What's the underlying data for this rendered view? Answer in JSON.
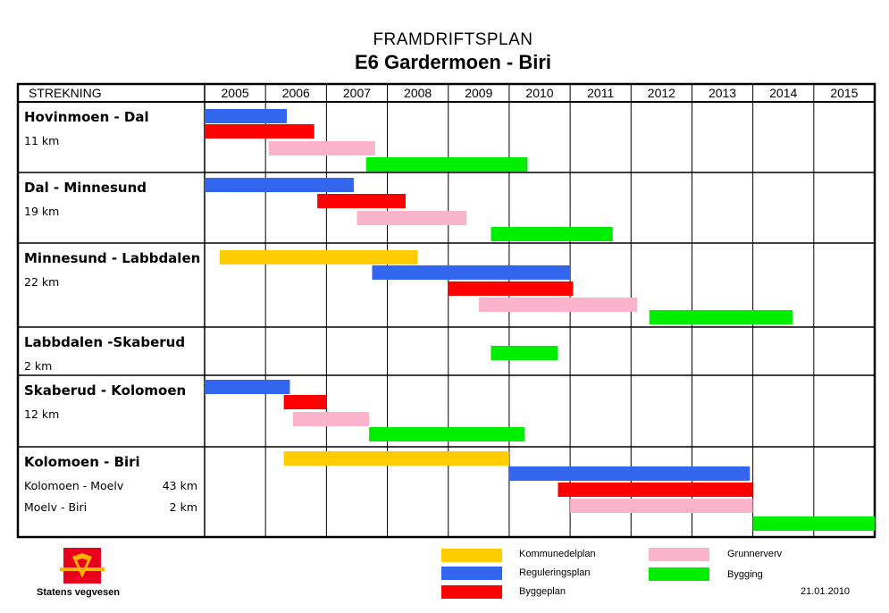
{
  "title": "FRAMDRIFTSPLAN",
  "subtitle": "E6 Gardermoen - Biri",
  "header_label": "STREKNING",
  "brand": "Statens vegvesen",
  "date": "21.01.2010",
  "colors": {
    "Kommunedelplan": "#ffcc00",
    "Reguleringsplan": "#3366ee",
    "Byggeplan": "#ff0000",
    "Grunnerverv": "#f9b4cc",
    "Bygging": "#00ee00"
  },
  "chart_data": {
    "type": "gantt",
    "years": [
      "2005",
      "2006",
      "2007",
      "2008",
      "2009",
      "2010",
      "2011",
      "2012",
      "2013",
      "2014",
      "2015"
    ],
    "legend": [
      "Kommunedelplan",
      "Reguleringsplan",
      "Byggeplan",
      "Grunnerverv",
      "Bygging"
    ],
    "sections": [
      {
        "name": "Hovinmoen - Dal",
        "sub": [
          [
            "11 km",
            ""
          ]
        ],
        "bars": [
          {
            "phase": "Reguleringsplan",
            "start": 2005.0,
            "end": 2006.35
          },
          {
            "phase": "Byggeplan",
            "start": 2005.0,
            "end": 2006.8
          },
          {
            "phase": "Grunnerverv",
            "start": 2006.05,
            "end": 2007.8
          },
          {
            "phase": "Bygging",
            "start": 2007.65,
            "end": 2010.3
          }
        ]
      },
      {
        "name": "Dal - Minnesund",
        "sub": [
          [
            "19 km",
            ""
          ]
        ],
        "bars": [
          {
            "phase": "Reguleringsplan",
            "start": 2005.0,
            "end": 2007.45
          },
          {
            "phase": "Byggeplan",
            "start": 2006.85,
            "end": 2008.3
          },
          {
            "phase": "Grunnerverv",
            "start": 2007.5,
            "end": 2009.3
          },
          {
            "phase": "Bygging",
            "start": 2009.7,
            "end": 2011.7
          }
        ]
      },
      {
        "name": "Minnesund - Labbdalen",
        "sub": [
          [
            "22 km",
            ""
          ]
        ],
        "bars": [
          {
            "phase": "Kommunedelplan",
            "start": 2005.25,
            "end": 2008.5
          },
          {
            "phase": "Reguleringsplan",
            "start": 2007.75,
            "end": 2011.0
          },
          {
            "phase": "Byggeplan",
            "start": 2009.0,
            "end": 2011.05
          },
          {
            "phase": "Grunnerverv",
            "start": 2009.5,
            "end": 2012.1
          },
          {
            "phase": "Bygging",
            "start": 2012.3,
            "end": 2014.65
          }
        ]
      },
      {
        "name": "Labbdalen -Skaberud",
        "sub": [
          [
            "2 km",
            ""
          ]
        ],
        "bars": [
          {
            "phase": "Bygging",
            "start": 2009.7,
            "end": 2010.8
          }
        ]
      },
      {
        "name": "Skaberud - Kolomoen",
        "sub": [
          [
            "12 km",
            ""
          ]
        ],
        "bars": [
          {
            "phase": "Reguleringsplan",
            "start": 2005.0,
            "end": 2006.4
          },
          {
            "phase": "Byggeplan",
            "start": 2006.3,
            "end": 2007.0
          },
          {
            "phase": "Grunnerverv",
            "start": 2006.45,
            "end": 2007.7
          },
          {
            "phase": "Bygging",
            "start": 2007.7,
            "end": 2010.25
          }
        ]
      },
      {
        "name": "Kolomoen - Biri",
        "sub": [
          [
            "Kolomoen - Moelv",
            "43 km"
          ],
          [
            "Moelv - Biri",
            "2 km"
          ]
        ],
        "bars": [
          {
            "phase": "Kommunedelplan",
            "start": 2006.3,
            "end": 2010.0
          },
          {
            "phase": "Reguleringsplan",
            "start": 2010.0,
            "end": 2013.95
          },
          {
            "phase": "Byggeplan",
            "start": 2010.8,
            "end": 2014.0
          },
          {
            "phase": "Grunnerverv",
            "start": 2011.0,
            "end": 2014.0
          },
          {
            "phase": "Bygging",
            "start": 2014.0,
            "end": 2016.0
          }
        ]
      }
    ]
  }
}
